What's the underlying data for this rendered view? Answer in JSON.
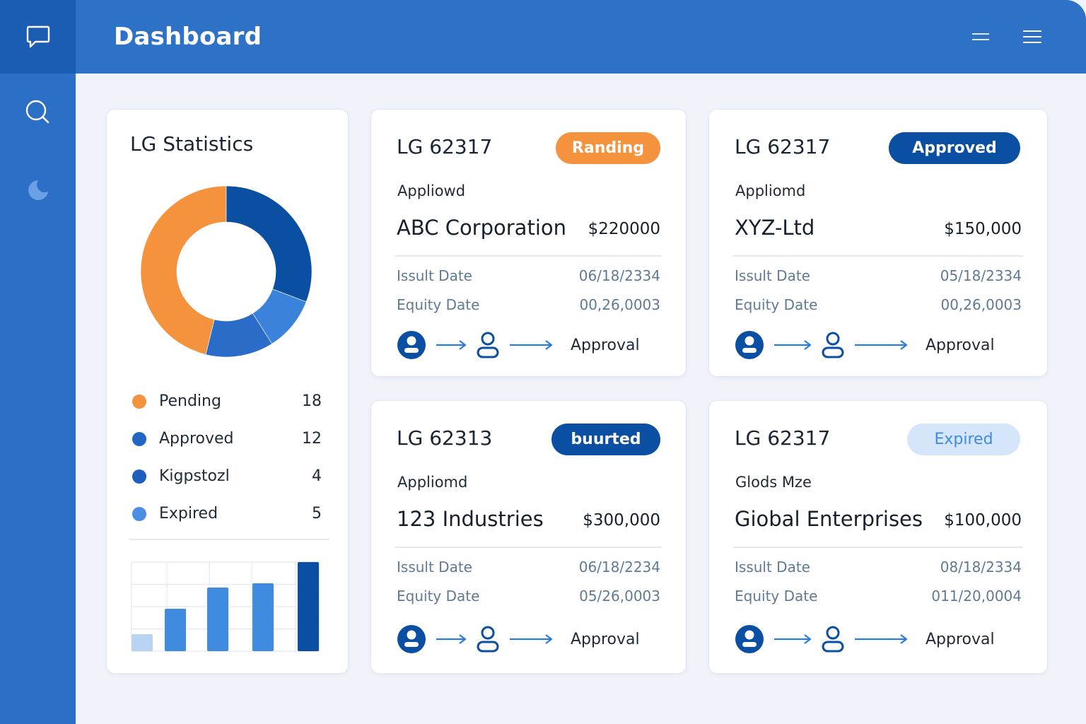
{
  "header": {
    "title": "Dashboard"
  },
  "sidebar": {
    "items": [
      {
        "icon": "chat-bubble-icon"
      },
      {
        "icon": "search-icon"
      },
      {
        "icon": "moon-icon"
      }
    ]
  },
  "header_actions": [
    {
      "icon": "collapse-menu-icon"
    },
    {
      "icon": "hamburger-menu-icon"
    }
  ],
  "stats": {
    "title": "LG Statistics",
    "legend": [
      {
        "label": "Pending",
        "count": "18",
        "color": "#f5923e"
      },
      {
        "label": "Approved",
        "count": "12",
        "color": "#2166c4"
      },
      {
        "label": "Kigpstozl",
        "count": "4",
        "color": "#1e5fbd"
      },
      {
        "label": "Expired",
        "count": "5",
        "color": "#4a8fe3"
      }
    ]
  },
  "chart_data": [
    {
      "type": "pie",
      "donut": true,
      "slices": [
        {
          "label": "Pending",
          "value": 18,
          "color": "#f5923e"
        },
        {
          "label": "Approved",
          "value": 12,
          "color": "#0b4fa3"
        },
        {
          "label": "Kigpstozl",
          "value": 4,
          "color": "#3a82da"
        },
        {
          "label": "Expired",
          "value": 5,
          "color": "#2a6cc8"
        }
      ]
    },
    {
      "type": "bar",
      "grid": true,
      "values": [
        2,
        5,
        7.5,
        8,
        10.5
      ],
      "ylim": [
        0,
        10.5
      ],
      "colors": [
        "#b9d3f3",
        "#3f8be0",
        "#3f8be0",
        "#3f8be0",
        "#0b4fa3"
      ]
    }
  ],
  "cards": [
    {
      "id": "LG 62317",
      "badge": "Randing",
      "badge_style": "orange",
      "status": "Appliowd",
      "company": "ABC Corporation",
      "amount": "$220000",
      "issue_label": "Issult Date",
      "issue_value": "06/18/2334",
      "expiry_label": "Equity Date",
      "expiry_value": "00,26,0003",
      "flow_label": "Approval"
    },
    {
      "id": "LG 62317",
      "badge": "Approved",
      "badge_style": "navy",
      "status": "Appliomd",
      "company": "XYZ-Ltd",
      "amount": "$150,000",
      "issue_label": "Issult Date",
      "issue_value": "05/18/2334",
      "expiry_label": "Equity Date",
      "expiry_value": "00,26,0003",
      "flow_label": "Approval"
    },
    {
      "id": "LG 62313",
      "badge": "buurted",
      "badge_style": "navy",
      "status": "Appliomd",
      "company": "123 Industries",
      "amount": "$300,000",
      "issue_label": "Issult Date",
      "issue_value": "06/18/2234",
      "expiry_label": "Equity Date",
      "expiry_value": "05/26,0003",
      "flow_label": "Approval"
    },
    {
      "id": "LG 62317",
      "badge": "Expired",
      "badge_style": "light",
      "status": "Glods Mze",
      "company": "Giobal Enterprises",
      "amount": "$100,000",
      "issue_label": "Issult Date",
      "issue_value": "08/18/2334",
      "expiry_label": "Equity Date",
      "expiry_value": "011/20,0004",
      "flow_label": "Approval"
    }
  ],
  "colors": {
    "primary": "#2e72c8",
    "sidebar_active": "#1c5db4",
    "navy": "#0b4fa3",
    "orange": "#f5923e",
    "light_badge_bg": "#d6e6fa",
    "light_badge_text": "#3f8be0"
  }
}
